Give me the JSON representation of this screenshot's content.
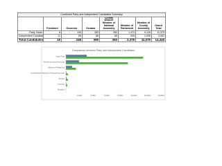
{
  "table": {
    "title": "Combined Party and Independent Candidates Summary",
    "header": [
      "President",
      "Governor",
      "Senator",
      "County Women Member of National Assembly",
      "Member of Parliament",
      "Member of County Assembly",
      "Grand Total"
    ],
    "rows": [
      [
        "Party Totals",
        "8",
        "193",
        "283",
        "282",
        "1,473",
        "9,140",
        "11,379"
      ],
      [
        "Independent Candidates",
        "11",
        "55",
        "86",
        "68",
        "905",
        "1,936",
        "3,061"
      ],
      [
        "Total Candidates",
        "19",
        "248",
        "369",
        "350",
        "2,378",
        "11,076",
        "14,440"
      ]
    ]
  },
  "chart_data": {
    "type": "bar",
    "orientation": "horizontal",
    "title": "Comparison between Party and Independent Candidates",
    "categories": [
      "Grand Total",
      "Member of County Assembly",
      "Member of Parliament",
      "County Women Member of National Assembly",
      "Senator",
      "Governor",
      "President"
    ],
    "series": [
      {
        "color": "#4a7ebb",
        "values": [
          3061,
          1936,
          905,
          68,
          86,
          55,
          11
        ]
      },
      {
        "color": "#5aa84a",
        "values": [
          11379,
          9140,
          1473,
          282,
          283,
          193,
          8
        ]
      }
    ],
    "xlim": [
      0,
      14000
    ],
    "xticks": [
      {
        "value": 0,
        "label": "-"
      },
      {
        "value": 2000,
        "label": "2,000"
      },
      {
        "value": 4000,
        "label": "4,000"
      },
      {
        "value": 6000,
        "label": "6,000"
      },
      {
        "value": 8000,
        "label": "8,000"
      },
      {
        "value": 10000,
        "label": "10,000"
      },
      {
        "value": 12000,
        "label": "12,000"
      },
      {
        "value": 14000,
        "label": "14,000"
      }
    ],
    "grid": false
  }
}
